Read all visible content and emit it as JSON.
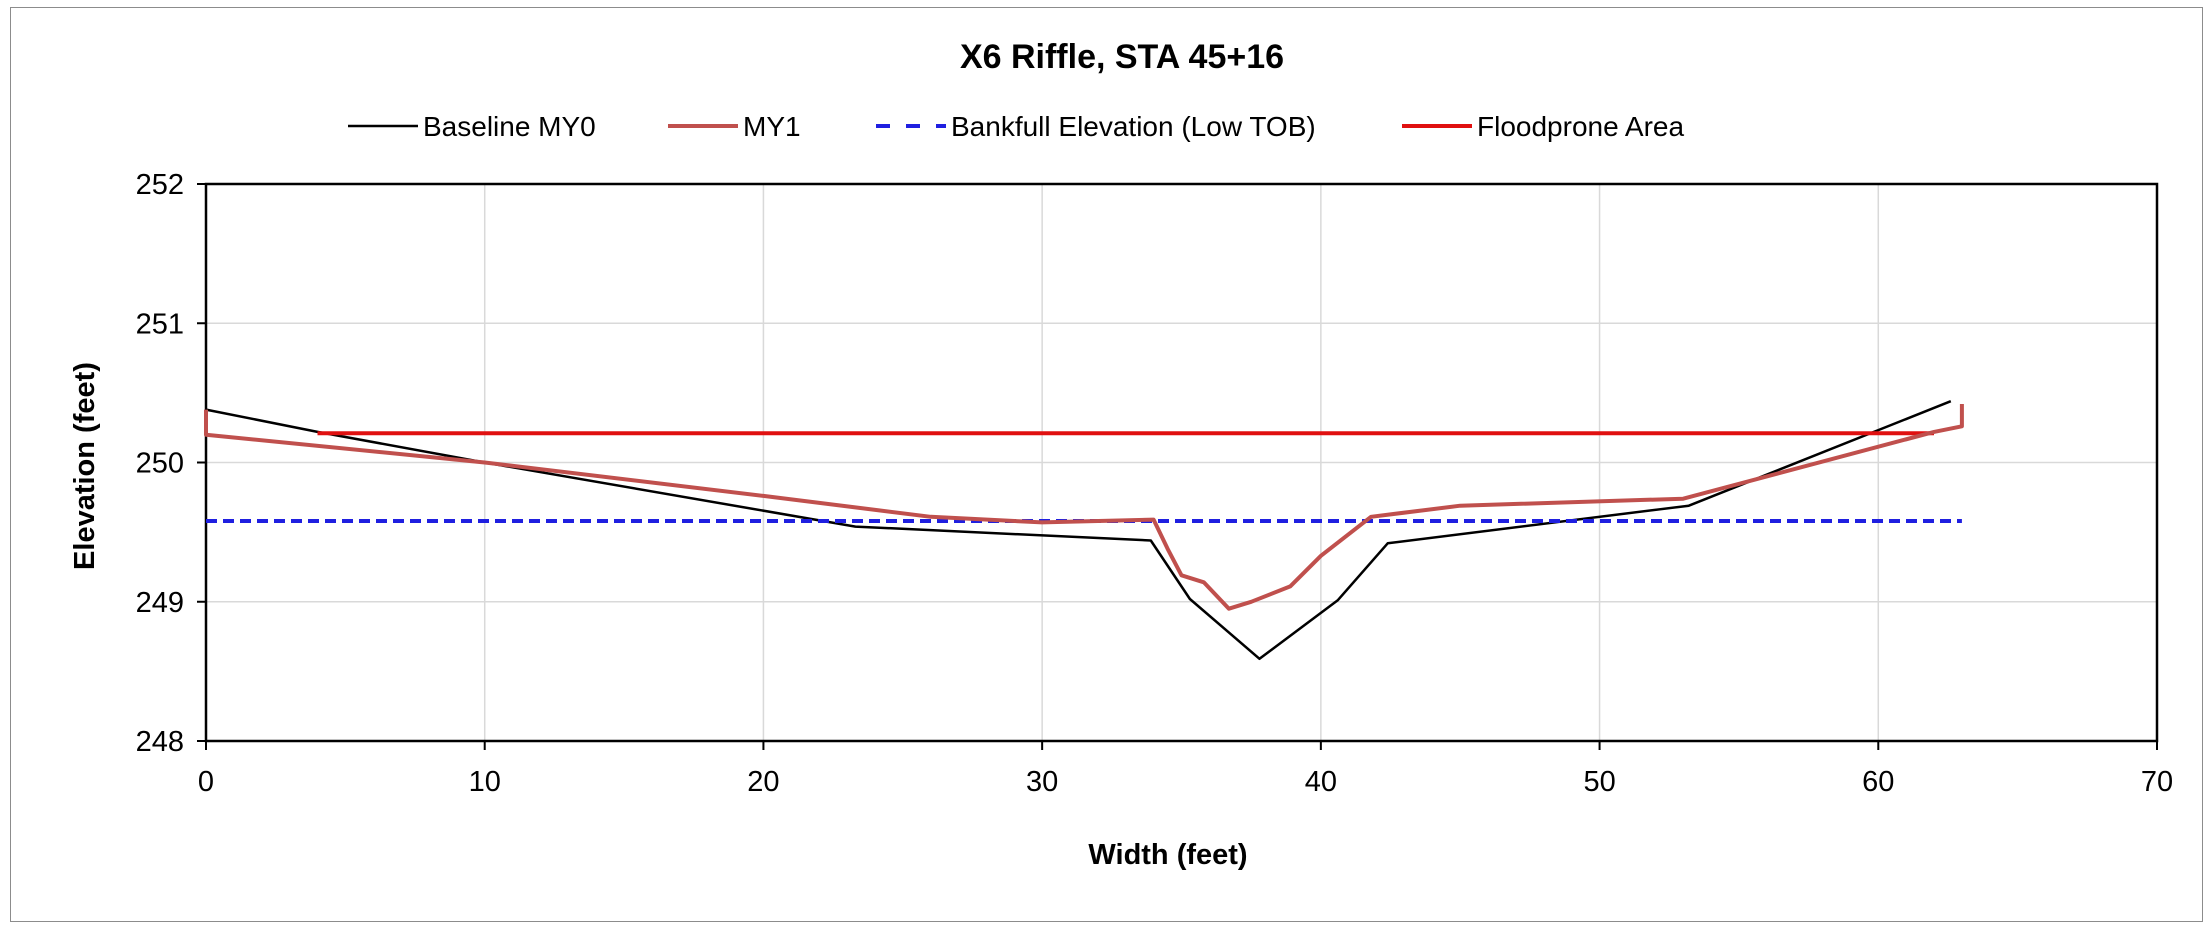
{
  "chart_data": {
    "type": "line",
    "title": "X6 Riffle, STA 45+16",
    "xlabel": "Width (feet)",
    "ylabel": "Elevation (feet)",
    "xlim": [
      0,
      70
    ],
    "ylim": [
      248,
      252
    ],
    "xticks": [
      0,
      10,
      20,
      30,
      40,
      50,
      60,
      70
    ],
    "yticks": [
      248,
      249,
      250,
      251,
      252
    ],
    "grid": true,
    "legend_position": "top",
    "series": [
      {
        "name": "Baseline MY0",
        "color": "#000000",
        "style": "solid",
        "x": [
          0,
          4,
          10,
          23.3,
          33.9,
          35.3,
          37.8,
          40.6,
          42.4,
          53.2,
          62.6
        ],
        "y": [
          250.38,
          250.22,
          250.0,
          249.54,
          249.44,
          249.02,
          248.59,
          249.01,
          249.42,
          249.69,
          250.44
        ]
      },
      {
        "name": "MY1",
        "color": "#c0504d",
        "style": "solid",
        "x": [
          0,
          0,
          10,
          20,
          26,
          30,
          34,
          34,
          34.5,
          35,
          35.8,
          36.7,
          37.5,
          38.9,
          40,
          41.8,
          45,
          53,
          62,
          63,
          63
        ],
        "y": [
          250.38,
          250.2,
          250.0,
          249.76,
          249.61,
          249.57,
          249.59,
          249.59,
          249.38,
          249.19,
          249.14,
          248.95,
          249.0,
          249.11,
          249.33,
          249.61,
          249.69,
          249.74,
          250.22,
          250.26,
          250.42
        ]
      },
      {
        "name": "Bankfull Elevation (Low TOB)",
        "color": "#1f1fe0",
        "style": "dashed",
        "x": [
          0,
          63
        ],
        "y": [
          249.58,
          249.58
        ]
      },
      {
        "name": "Floodprone Area",
        "color": "#e01010",
        "style": "solid",
        "x": [
          4,
          62
        ],
        "y": [
          250.21,
          250.21
        ]
      }
    ]
  }
}
